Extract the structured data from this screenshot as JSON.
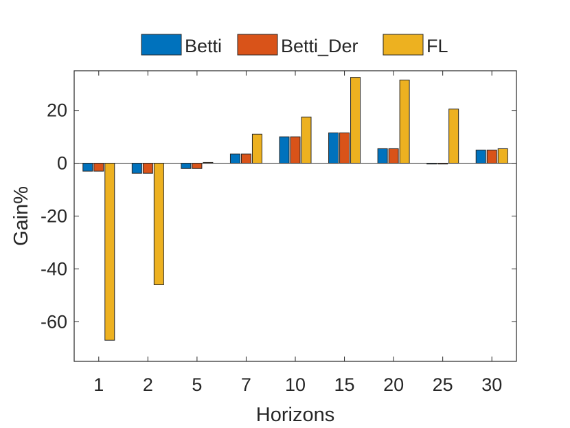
{
  "chart_data": {
    "type": "bar",
    "title": "",
    "xlabel": "Horizons",
    "ylabel": "Gain%",
    "categories": [
      "1",
      "2",
      "5",
      "7",
      "10",
      "15",
      "20",
      "25",
      "30"
    ],
    "ylim": [
      -75,
      35
    ],
    "yticks": [
      -60,
      -40,
      -20,
      0,
      20
    ],
    "grid": false,
    "legend": {
      "placement": "top",
      "orientation": "horizontal"
    },
    "series": [
      {
        "name": "Betti",
        "color": "#0072BD",
        "values": [
          -3,
          -3.8,
          -2,
          3.5,
          10,
          11.5,
          5.5,
          -0.3,
          5
        ]
      },
      {
        "name": "Betti_Der",
        "color": "#D95319",
        "values": [
          -3,
          -3.8,
          -2,
          3.5,
          10,
          11.5,
          5.5,
          -0.3,
          5
        ]
      },
      {
        "name": "FL",
        "color": "#EDB120",
        "values": [
          -67,
          -46,
          0.3,
          11,
          17.5,
          32.5,
          31.5,
          20.5,
          5.5
        ]
      }
    ]
  }
}
